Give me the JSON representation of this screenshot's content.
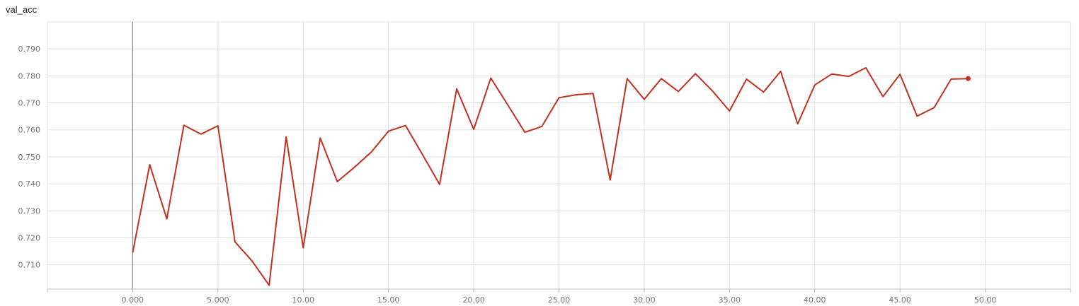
{
  "chart_data": {
    "type": "line",
    "title": "val_acc",
    "xlabel": "",
    "ylabel": "",
    "xlim": [
      -5,
      55
    ],
    "ylim": [
      0.701,
      0.8
    ],
    "x_ticks": [
      {
        "value": 0,
        "label": "0.000"
      },
      {
        "value": 5,
        "label": "5.000"
      },
      {
        "value": 10,
        "label": "10.00"
      },
      {
        "value": 15,
        "label": "15.00"
      },
      {
        "value": 20,
        "label": "20.00"
      },
      {
        "value": 25,
        "label": "25.00"
      },
      {
        "value": 30,
        "label": "30.00"
      },
      {
        "value": 35,
        "label": "35.00"
      },
      {
        "value": 40,
        "label": "40.00"
      },
      {
        "value": 45,
        "label": "45.00"
      },
      {
        "value": 50,
        "label": "50.00"
      }
    ],
    "y_ticks": [
      {
        "value": 0.71,
        "label": "0.710"
      },
      {
        "value": 0.72,
        "label": "0.720"
      },
      {
        "value": 0.73,
        "label": "0.730"
      },
      {
        "value": 0.74,
        "label": "0.740"
      },
      {
        "value": 0.75,
        "label": "0.750"
      },
      {
        "value": 0.76,
        "label": "0.760"
      },
      {
        "value": 0.77,
        "label": "0.770"
      },
      {
        "value": 0.78,
        "label": "0.780"
      },
      {
        "value": 0.79,
        "label": "0.790"
      }
    ],
    "grid": true,
    "series": [
      {
        "color": "#c4301e",
        "x": [
          0,
          1,
          2,
          3,
          4,
          5,
          6,
          7,
          8,
          9,
          10,
          11,
          12,
          13,
          14,
          15,
          16,
          17,
          18,
          19,
          20,
          21,
          22,
          23,
          24,
          25,
          26,
          27,
          28,
          29,
          30,
          31,
          32,
          33,
          34,
          35,
          36,
          37,
          38,
          39,
          40,
          41,
          42,
          43,
          44,
          45,
          46,
          47,
          48,
          49
        ],
        "y": [
          0.7145,
          0.7471,
          0.727,
          0.7617,
          0.7584,
          0.7615,
          0.7185,
          0.7114,
          0.7024,
          0.7574,
          0.7163,
          0.757,
          0.7408,
          0.7461,
          0.7518,
          0.7595,
          0.7616,
          0.7508,
          0.7398,
          0.7752,
          0.7602,
          0.7792,
          0.7692,
          0.7591,
          0.7613,
          0.7719,
          0.773,
          0.7735,
          0.7414,
          0.779,
          0.7713,
          0.779,
          0.7742,
          0.7808,
          0.7744,
          0.767,
          0.7788,
          0.774,
          0.7817,
          0.7622,
          0.7766,
          0.7807,
          0.7798,
          0.783,
          0.7723,
          0.7806,
          0.7651,
          0.7682,
          0.7788,
          0.779
        ]
      }
    ]
  }
}
